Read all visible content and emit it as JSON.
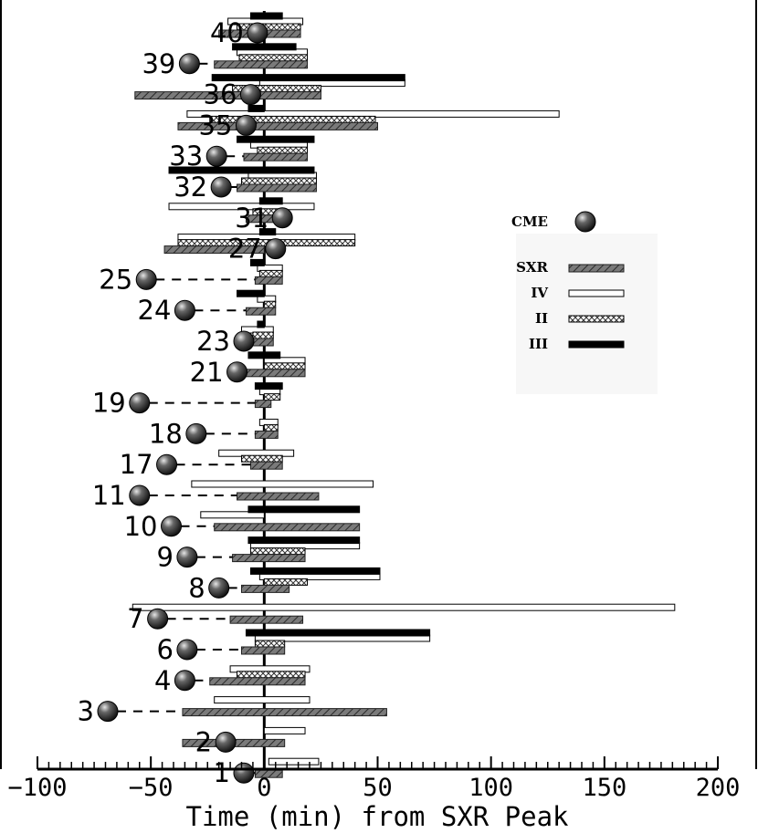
{
  "chart_data": {
    "type": "bar",
    "orientation": "horizontal",
    "title": "",
    "xlabel": "Time (min) from SXR Peak",
    "xlim": [
      -100,
      200
    ],
    "xticks": [
      -100,
      -50,
      0,
      50,
      100,
      150,
      200
    ],
    "xtick_labels": [
      "−100",
      "−50",
      "0",
      "50",
      "100",
      "150",
      "200"
    ],
    "grid": false,
    "legend_position": "right",
    "legend": [
      {
        "key": "CME",
        "label": "CME",
        "marker": "sphere"
      },
      {
        "key": "SXR",
        "label": "SXR",
        "style": "hatched-gray"
      },
      {
        "key": "IV",
        "label": "IV",
        "style": "open-white"
      },
      {
        "key": "II",
        "label": "II",
        "style": "cross-hatched"
      },
      {
        "key": "III",
        "label": "III",
        "style": "solid-black"
      }
    ],
    "events": [
      {
        "id": "40",
        "cme": -3,
        "SXR": [
          -20,
          16
        ],
        "IV": [
          -16,
          17
        ],
        "II": [
          -12,
          16
        ],
        "III": [
          -6,
          8
        ]
      },
      {
        "id": "39",
        "cme": -33,
        "SXR": [
          -22,
          19
        ],
        "IV": [
          -12,
          19
        ],
        "II": [
          -11,
          19
        ],
        "III": [
          -14,
          14
        ]
      },
      {
        "id": "36",
        "cme": -6,
        "SXR": [
          -57,
          25
        ],
        "IV": [
          -2,
          62
        ],
        "II": [
          -14,
          25
        ],
        "III": [
          -23,
          62
        ]
      },
      {
        "id": "35",
        "cme": -8,
        "SXR": [
          -38,
          50
        ],
        "IV": [
          -34,
          130
        ],
        "II": [
          -24,
          49
        ],
        "III": [
          -7,
          0
        ]
      },
      {
        "id": "33",
        "cme": -21,
        "SXR": [
          -9,
          19
        ],
        "IV": [
          -6,
          19
        ],
        "II": [
          -3,
          19
        ],
        "III": [
          -12,
          22
        ]
      },
      {
        "id": "32",
        "cme": -19,
        "SXR": [
          -12,
          23
        ],
        "IV": [
          -7,
          23
        ],
        "II": [
          -10,
          23
        ],
        "III": [
          -42,
          22
        ]
      },
      {
        "id": "31",
        "cme": 8,
        "SXR": [
          -8,
          8
        ],
        "IV": [
          -42,
          22
        ],
        "II": [
          -5,
          8
        ],
        "III": [
          -2,
          8
        ]
      },
      {
        "id": "27",
        "cme": 5,
        "SXR": [
          -44,
          0
        ],
        "IV": [
          -38,
          40
        ],
        "II": [
          -38,
          40
        ],
        "III": [
          -2,
          5
        ]
      },
      {
        "id": "25",
        "cme": -52,
        "SXR": [
          -4,
          8
        ],
        "IV": [
          -3,
          8
        ],
        "II": [
          -2,
          8
        ],
        "III": [
          -6,
          0
        ]
      },
      {
        "id": "24",
        "cme": -35,
        "SXR": [
          -8,
          5
        ],
        "IV": [
          -3,
          5
        ],
        "II": [
          0,
          5
        ],
        "III": [
          -12,
          0
        ]
      },
      {
        "id": "23",
        "cme": -9,
        "SXR": [
          -8,
          4
        ],
        "IV": [
          -10,
          4
        ],
        "II": [
          -5,
          4
        ],
        "III": [
          -3,
          0
        ]
      },
      {
        "id": "21",
        "cme": -12,
        "SXR": [
          -8,
          18
        ],
        "IV": [
          0,
          18
        ],
        "II": [
          0,
          18
        ],
        "III": [
          -7,
          7
        ]
      },
      {
        "id": "19",
        "cme": -55,
        "SXR": [
          -4,
          3
        ],
        "IV": [
          -2,
          7
        ],
        "II": [
          0,
          7
        ],
        "III": [
          -4,
          8
        ]
      },
      {
        "id": "18",
        "cme": -30,
        "SXR": [
          -4,
          6
        ],
        "IV": [
          -2,
          6
        ],
        "II": [
          0,
          6
        ],
        "III": [
          0,
          0
        ]
      },
      {
        "id": "17",
        "cme": -43,
        "SXR": [
          -6,
          8
        ],
        "IV": [
          -20,
          13
        ],
        "II": [
          -10,
          8
        ],
        "III": [
          0,
          0
        ]
      },
      {
        "id": "11",
        "cme": -55,
        "SXR": [
          -12,
          24
        ],
        "IV": [
          -32,
          48
        ],
        "II": [
          0,
          0
        ],
        "III": [
          0,
          0
        ]
      },
      {
        "id": "10",
        "cme": -41,
        "SXR": [
          -22,
          42
        ],
        "IV": [
          -28,
          0
        ],
        "II": [
          0,
          0
        ],
        "III": [
          -7,
          42
        ]
      },
      {
        "id": "9",
        "cme": -34,
        "SXR": [
          -14,
          18
        ],
        "IV": [
          -6,
          42
        ],
        "II": [
          -6,
          18
        ],
        "III": [
          -7,
          42
        ]
      },
      {
        "id": "8",
        "cme": -20,
        "SXR": [
          -10,
          11
        ],
        "IV": [
          -2,
          51
        ],
        "II": [
          0,
          19
        ],
        "III": [
          -6,
          51
        ]
      },
      {
        "id": "7",
        "cme": -47,
        "SXR": [
          -15,
          17
        ],
        "IV": [
          -58,
          181
        ],
        "II": [
          0,
          0
        ],
        "III": [
          0,
          0
        ]
      },
      {
        "id": "6",
        "cme": -34,
        "SXR": [
          -10,
          9
        ],
        "IV": [
          -4,
          73
        ],
        "II": [
          -4,
          9
        ],
        "III": [
          -8,
          73
        ]
      },
      {
        "id": "4",
        "cme": -35,
        "SXR": [
          -24,
          18
        ],
        "IV": [
          -15,
          20
        ],
        "II": [
          -12,
          18
        ],
        "III": [
          0,
          0
        ]
      },
      {
        "id": "3",
        "cme": -69,
        "SXR": [
          -36,
          54
        ],
        "IV": [
          -22,
          20
        ],
        "II": [
          0,
          0
        ],
        "III": [
          0,
          0
        ]
      },
      {
        "id": "2",
        "cme": -17,
        "SXR": [
          -36,
          9
        ],
        "IV": [
          0,
          18
        ],
        "II": [
          0,
          0
        ],
        "III": [
          0,
          0
        ]
      },
      {
        "id": "1",
        "cme": -9,
        "SXR": [
          -4,
          8
        ],
        "IV": [
          2,
          24
        ],
        "II": [
          0,
          0
        ],
        "III": [
          0,
          0
        ]
      }
    ]
  },
  "colors": {
    "axis": "#000000",
    "sxr_fill": "#6e6e6e",
    "iv_fill": "#ffffff",
    "ii_fill": "#ffffff",
    "iii_fill": "#000000",
    "cme_dark": "#111111",
    "cme_light": "#d8d8d8"
  }
}
